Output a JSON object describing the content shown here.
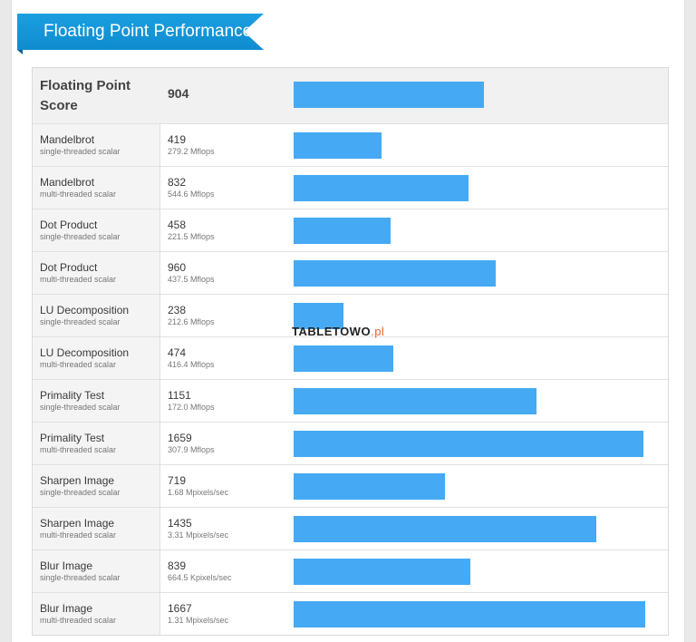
{
  "section_title": "Floating Point Performance",
  "watermark": {
    "main": "TABLETOWO",
    "suffix": ".pl"
  },
  "chart_data": {
    "type": "bar",
    "orientation": "horizontal",
    "bar_color": "#45aaf3",
    "xlim": [
      0,
      1720
    ],
    "summary": {
      "label": "Floating Point Score",
      "value": 904
    },
    "categories": [
      "Mandelbrot",
      "Mandelbrot",
      "Dot Product",
      "Dot Product",
      "LU Decomposition",
      "LU Decomposition",
      "Primality Test",
      "Primality Test",
      "Sharpen Image",
      "Sharpen Image",
      "Blur Image",
      "Blur Image"
    ],
    "rows": [
      {
        "name": "Mandelbrot",
        "mode": "single-threaded scalar",
        "score": 419,
        "rate": "279.2 Mflops"
      },
      {
        "name": "Mandelbrot",
        "mode": "multi-threaded scalar",
        "score": 832,
        "rate": "544.6 Mflops"
      },
      {
        "name": "Dot Product",
        "mode": "single-threaded scalar",
        "score": 458,
        "rate": "221.5 Mflops"
      },
      {
        "name": "Dot Product",
        "mode": "multi-threaded scalar",
        "score": 960,
        "rate": "437.5 Mflops"
      },
      {
        "name": "LU Decomposition",
        "mode": "single-threaded scalar",
        "score": 238,
        "rate": "212.6 Mflops"
      },
      {
        "name": "LU Decomposition",
        "mode": "multi-threaded scalar",
        "score": 474,
        "rate": "416.4 Mflops"
      },
      {
        "name": "Primality Test",
        "mode": "single-threaded scalar",
        "score": 1151,
        "rate": "172.0 Mflops"
      },
      {
        "name": "Primality Test",
        "mode": "multi-threaded scalar",
        "score": 1659,
        "rate": "307.9 Mflops"
      },
      {
        "name": "Sharpen Image",
        "mode": "single-threaded scalar",
        "score": 719,
        "rate": "1.68 Mpixels/sec"
      },
      {
        "name": "Sharpen Image",
        "mode": "multi-threaded scalar",
        "score": 1435,
        "rate": "3.31 Mpixels/sec"
      },
      {
        "name": "Blur Image",
        "mode": "single-threaded scalar",
        "score": 839,
        "rate": "664.5 Kpixels/sec"
      },
      {
        "name": "Blur Image",
        "mode": "multi-threaded scalar",
        "score": 1667,
        "rate": "1.31 Mpixels/sec"
      }
    ]
  }
}
